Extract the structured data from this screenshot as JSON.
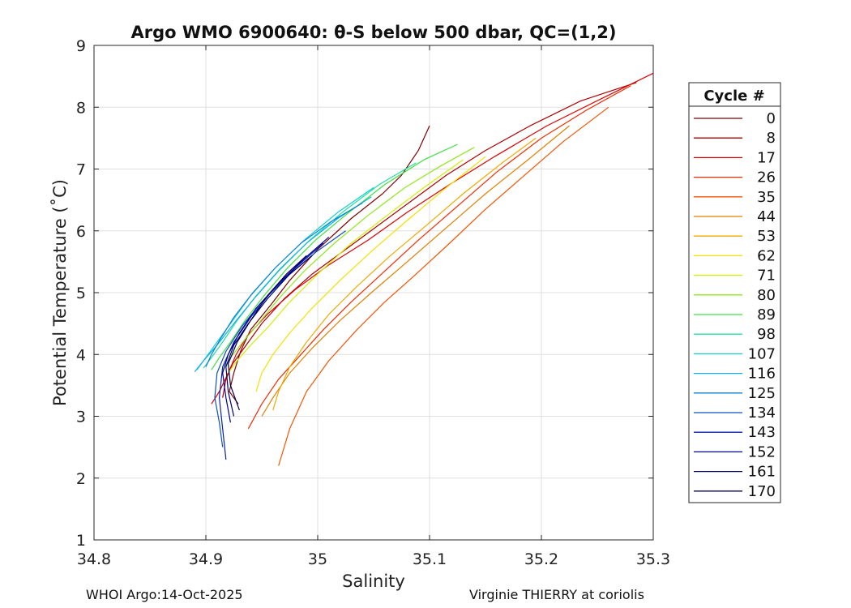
{
  "chart_data": {
    "type": "line",
    "title": "Argo WMO 6900640: θ-S below 500 dbar,  QC=(1,2)",
    "xlabel": "Salinity",
    "ylabel": "Potential Temperature (˚C)",
    "xlim": [
      34.8,
      35.3
    ],
    "ylim": [
      1,
      9
    ],
    "xticks": [
      "34.8",
      "34.9",
      "35",
      "35.1",
      "35.2",
      "35.3"
    ],
    "yticks": [
      "1",
      "2",
      "3",
      "4",
      "5",
      "6",
      "7",
      "8",
      "9"
    ],
    "grid": true,
    "legend": {
      "title": "Cycle #",
      "position": "outside-right",
      "entries": [
        {
          "label": "0",
          "color": "#800000"
        },
        {
          "label": "8",
          "color": "#b00000"
        },
        {
          "label": "17",
          "color": "#e00000"
        },
        {
          "label": "26",
          "color": "#f52a00"
        },
        {
          "label": "35",
          "color": "#f55500"
        },
        {
          "label": "44",
          "color": "#e08000"
        },
        {
          "label": "53",
          "color": "#f0aa00"
        },
        {
          "label": "62",
          "color": "#f5e000"
        },
        {
          "label": "71",
          "color": "#d0f000"
        },
        {
          "label": "80",
          "color": "#90e81a"
        },
        {
          "label": "89",
          "color": "#40e040"
        },
        {
          "label": "98",
          "color": "#20e0a0"
        },
        {
          "label": "107",
          "color": "#10d0d0"
        },
        {
          "label": "116",
          "color": "#10b0e8"
        },
        {
          "label": "125",
          "color": "#1080d8"
        },
        {
          "label": "134",
          "color": "#1050c0"
        },
        {
          "label": "143",
          "color": "#0a20b0"
        },
        {
          "label": "152",
          "color": "#000098"
        },
        {
          "label": "161",
          "color": "#000070"
        },
        {
          "label": "170",
          "color": "#000050"
        }
      ]
    },
    "series": [
      {
        "name": "0",
        "color": "#800000",
        "x": [
          34.929,
          34.921,
          34.925,
          34.931,
          34.94,
          34.958,
          34.975,
          35.0,
          35.03,
          35.058,
          35.075,
          35.09,
          35.1
        ],
        "y": [
          3.2,
          3.4,
          3.7,
          4.05,
          4.4,
          4.8,
          5.2,
          5.7,
          6.2,
          6.6,
          6.9,
          7.3,
          7.7
        ]
      },
      {
        "name": "8",
        "color": "#b00000",
        "x": [
          34.915,
          34.918,
          34.924,
          34.934,
          34.95,
          34.97,
          34.995,
          35.025,
          35.055,
          35.085,
          35.115,
          35.15,
          35.19,
          35.235,
          35.285
        ],
        "y": [
          3.3,
          3.6,
          3.85,
          4.1,
          4.5,
          4.9,
          5.3,
          5.7,
          6.1,
          6.5,
          6.9,
          7.3,
          7.7,
          8.1,
          8.4
        ]
      },
      {
        "name": "17",
        "color": "#e00000",
        "x": [
          34.905,
          34.912,
          34.92,
          34.927,
          34.937,
          34.955,
          34.98,
          35.01,
          35.045,
          35.08,
          35.118,
          35.158,
          35.205,
          35.255,
          35.3
        ],
        "y": [
          3.2,
          3.4,
          3.7,
          4.0,
          4.3,
          4.65,
          5.05,
          5.45,
          5.85,
          6.3,
          6.75,
          7.2,
          7.7,
          8.15,
          8.55
        ]
      },
      {
        "name": "26",
        "color": "#f52a00",
        "x": [
          34.938,
          34.95,
          34.965,
          34.985,
          35.005,
          35.03,
          35.06,
          35.09,
          35.125,
          35.16,
          35.2,
          35.24,
          35.28
        ],
        "y": [
          2.8,
          3.2,
          3.6,
          4.0,
          4.4,
          4.85,
          5.35,
          5.85,
          6.4,
          6.95,
          7.5,
          7.95,
          8.35
        ]
      },
      {
        "name": "35",
        "color": "#f55500",
        "x": [
          34.965,
          34.975,
          34.99,
          35.01,
          35.035,
          35.06,
          35.088,
          35.118,
          35.15,
          35.185,
          35.22,
          35.26
        ],
        "y": [
          2.2,
          2.8,
          3.4,
          3.9,
          4.4,
          4.85,
          5.3,
          5.8,
          6.35,
          6.9,
          7.45,
          8.0
        ]
      },
      {
        "name": "44",
        "color": "#e08000",
        "x": [
          34.95,
          34.96,
          34.975,
          34.995,
          35.02,
          35.048,
          35.08,
          35.115,
          35.15,
          35.188,
          35.225
        ],
        "y": [
          3.0,
          3.3,
          3.7,
          4.1,
          4.55,
          5.0,
          5.5,
          6.05,
          6.6,
          7.15,
          7.7
        ]
      },
      {
        "name": "53",
        "color": "#f0aa00",
        "x": [
          34.96,
          34.965,
          34.975,
          34.99,
          35.01,
          35.035,
          35.065,
          35.098,
          35.13,
          35.165,
          35.195
        ],
        "y": [
          3.1,
          3.4,
          3.8,
          4.2,
          4.65,
          5.1,
          5.6,
          6.1,
          6.6,
          7.1,
          7.5
        ]
      },
      {
        "name": "62",
        "color": "#f5e000",
        "x": [
          34.945,
          34.95,
          34.96,
          34.975,
          34.995,
          35.02,
          35.05,
          35.082,
          35.115,
          35.15
        ],
        "y": [
          3.4,
          3.7,
          4.0,
          4.35,
          4.75,
          5.2,
          5.7,
          6.2,
          6.7,
          7.2
        ]
      },
      {
        "name": "71",
        "color": "#d0f000",
        "x": [
          34.92,
          34.928,
          34.94,
          34.956,
          34.975,
          35.0,
          35.03,
          35.062,
          35.095,
          35.13
        ],
        "y": [
          3.7,
          3.9,
          4.15,
          4.45,
          4.85,
          5.3,
          5.8,
          6.25,
          6.7,
          7.15
        ]
      },
      {
        "name": "80",
        "color": "#90e81a",
        "x": [
          34.915,
          34.922,
          34.933,
          34.947,
          34.965,
          34.988,
          35.015,
          35.045,
          35.078,
          35.11,
          35.14
        ],
        "y": [
          3.75,
          3.95,
          4.2,
          4.5,
          4.9,
          5.35,
          5.8,
          6.25,
          6.7,
          7.05,
          7.35
        ]
      },
      {
        "name": "89",
        "color": "#40e040",
        "x": [
          34.905,
          34.912,
          34.922,
          34.935,
          34.952,
          34.973,
          34.998,
          35.028,
          35.06,
          35.095,
          35.125
        ],
        "y": [
          3.75,
          3.95,
          4.2,
          4.55,
          4.95,
          5.4,
          5.85,
          6.3,
          6.75,
          7.15,
          7.4
        ]
      },
      {
        "name": "98",
        "color": "#20e0a0",
        "x": [
          34.898,
          34.905,
          34.915,
          34.928,
          34.945,
          34.967,
          34.993,
          35.022,
          35.055,
          35.088
        ],
        "y": [
          3.78,
          3.95,
          4.2,
          4.55,
          4.95,
          5.4,
          5.85,
          6.3,
          6.75,
          7.1
        ]
      },
      {
        "name": "107",
        "color": "#10d0d0",
        "x": [
          34.892,
          34.898,
          34.908,
          34.922,
          34.94,
          34.962,
          34.988,
          35.018,
          35.05
        ],
        "y": [
          3.75,
          3.9,
          4.15,
          4.5,
          4.95,
          5.4,
          5.85,
          6.3,
          6.7
        ]
      },
      {
        "name": "116",
        "color": "#10b0e8",
        "x": [
          34.89,
          34.898,
          34.91,
          34.925,
          34.943,
          34.965,
          34.99,
          35.018,
          35.048
        ],
        "y": [
          3.72,
          3.9,
          4.15,
          4.5,
          4.9,
          5.35,
          5.8,
          6.2,
          6.55
        ]
      },
      {
        "name": "125",
        "color": "#1080d8",
        "x": [
          34.9,
          34.905,
          34.913,
          34.925,
          34.942,
          34.962,
          34.985,
          35.012,
          35.04
        ],
        "y": [
          3.8,
          4.0,
          4.25,
          4.6,
          5.0,
          5.4,
          5.8,
          6.15,
          6.45
        ]
      },
      {
        "name": "134",
        "color": "#1050c0",
        "x": [
          34.915,
          34.912,
          34.908,
          34.91,
          34.918,
          34.932,
          34.95,
          34.972,
          34.998,
          35.025
        ],
        "y": [
          2.5,
          2.9,
          3.3,
          3.7,
          4.05,
          4.45,
          4.85,
          5.25,
          5.65,
          6.0
        ]
      },
      {
        "name": "143",
        "color": "#0a20b0",
        "x": [
          34.918,
          34.915,
          34.912,
          34.915,
          34.925,
          34.94,
          34.958,
          34.98,
          35.005
        ],
        "y": [
          2.3,
          2.8,
          3.3,
          3.8,
          4.2,
          4.6,
          5.0,
          5.4,
          5.8
        ]
      },
      {
        "name": "152",
        "color": "#000098",
        "x": [
          34.922,
          34.918,
          34.915,
          34.92,
          34.93,
          34.945,
          34.965,
          34.988,
          35.01
        ],
        "y": [
          2.9,
          3.3,
          3.7,
          4.0,
          4.35,
          4.75,
          5.15,
          5.55,
          5.9
        ]
      },
      {
        "name": "161",
        "color": "#000070",
        "x": [
          34.925,
          34.92,
          34.918,
          34.925,
          34.938,
          34.955,
          34.975,
          34.995
        ],
        "y": [
          3.0,
          3.4,
          3.8,
          4.15,
          4.5,
          4.9,
          5.3,
          5.6
        ]
      },
      {
        "name": "170",
        "color": "#000050",
        "x": [
          34.93,
          34.922,
          34.92,
          34.928,
          34.94,
          34.955,
          34.972,
          34.99
        ],
        "y": [
          3.1,
          3.5,
          3.85,
          4.2,
          4.55,
          4.95,
          5.3,
          5.6
        ]
      }
    ]
  },
  "footer": {
    "left": "WHOI Argo:14-Oct-2025",
    "right": "Virginie THIERRY at coriolis"
  }
}
